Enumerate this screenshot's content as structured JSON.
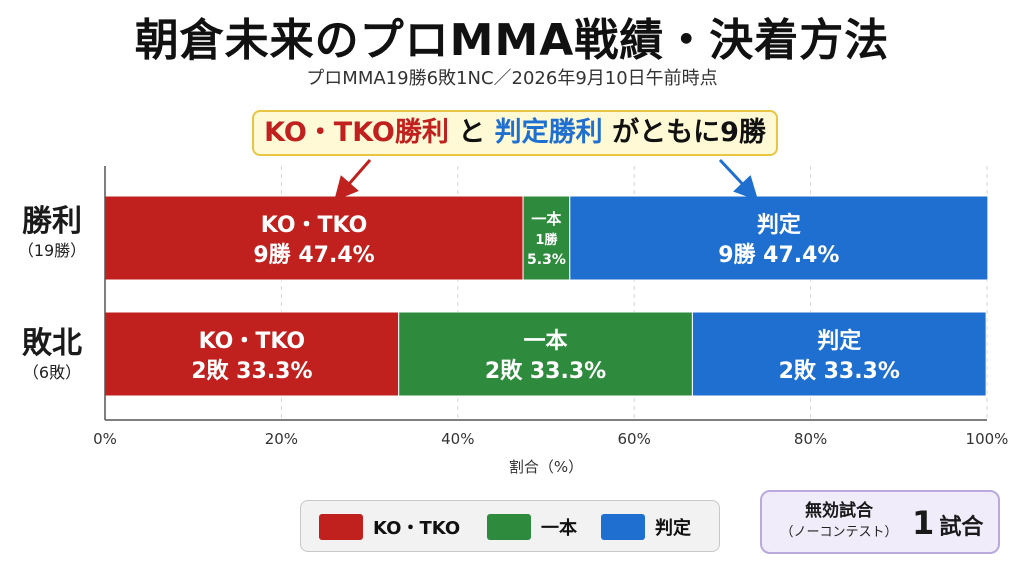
{
  "title": "朝倉未来のプロMMA戦績・決着方法",
  "subtitle": "プロMMA19勝6敗1NC／2026年9月10日午前時点",
  "callout": {
    "part1": "KO・TKO勝利",
    "part2": "と",
    "part3": "判定勝利",
    "part4": "がともに9勝"
  },
  "colors": {
    "ko_tko": "#c0201e",
    "submission": "#2e8b3d",
    "decision": "#1e6fd0"
  },
  "chart_data": {
    "type": "bar",
    "orientation": "horizontal",
    "stacked": true,
    "normalized": true,
    "categories": [
      "勝利",
      "敗北"
    ],
    "category_sublabels": [
      "（19勝）",
      "（6敗）"
    ],
    "series": [
      {
        "name": "KO・TKO",
        "values": [
          47.4,
          33.3
        ],
        "counts": [
          9,
          2
        ]
      },
      {
        "name": "一本",
        "values": [
          5.3,
          33.3
        ],
        "counts": [
          1,
          2
        ]
      },
      {
        "name": "判定",
        "values": [
          47.4,
          33.3
        ],
        "counts": [
          9,
          2
        ]
      }
    ],
    "segment_labels": [
      [
        {
          "name": "KO・TKO",
          "detail": "9勝 47.4%"
        },
        {
          "name": "一本",
          "count": "1勝",
          "percent": "5.3%"
        },
        {
          "name": "判定",
          "detail": "9勝 47.4%"
        }
      ],
      [
        {
          "name": "KO・TKO",
          "detail": "2敗 33.3%"
        },
        {
          "name": "一本",
          "detail": "2敗 33.3%"
        },
        {
          "name": "判定",
          "detail": "2敗 33.3%"
        }
      ]
    ],
    "xlabel": "割合（%）",
    "xlim": [
      0,
      100
    ],
    "xticks": [
      "0%",
      "20%",
      "40%",
      "60%",
      "80%",
      "100%"
    ],
    "grid": true,
    "legend_position": "bottom"
  },
  "legend": {
    "items": [
      {
        "label": "KO・TKO",
        "color": "#c0201e"
      },
      {
        "label": "一本",
        "color": "#2e8b3d"
      },
      {
        "label": "判定",
        "color": "#1e6fd0"
      }
    ]
  },
  "no_contest": {
    "label_line1": "無効試合",
    "label_line2": "（ノーコンテスト）",
    "count": "1",
    "unit": "試合"
  }
}
